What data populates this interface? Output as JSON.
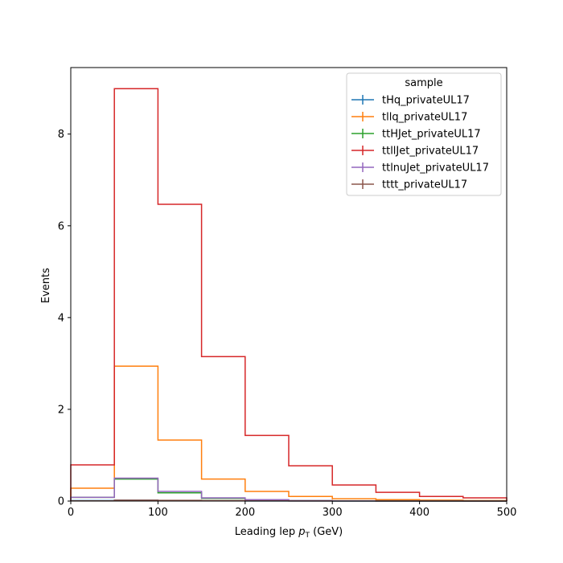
{
  "chart_data": {
    "type": "step-histogram",
    "xlabel_main": "Leading lep ",
    "xlabel_sym": "p",
    "xlabel_sub": "T",
    "xlabel_unit": " (GeV)",
    "ylabel": "Events",
    "xlim": [
      0,
      500
    ],
    "ylim": [
      0,
      9.45
    ],
    "xticks": [
      0,
      100,
      200,
      300,
      400,
      500
    ],
    "yticks": [
      0,
      2,
      4,
      6,
      8
    ],
    "bin_edges": [
      0,
      50,
      100,
      150,
      200,
      250,
      300,
      350,
      400,
      450,
      500
    ],
    "legend": {
      "title": "sample",
      "placement": "top-right"
    },
    "grid": false,
    "series": [
      {
        "name": "tHq_privateUL17",
        "color": "#1f77b4",
        "values": [
          0.01,
          0.02,
          0.01,
          0.005,
          0.003,
          0.002,
          0.001,
          0.001,
          0.0005,
          0.0003
        ]
      },
      {
        "name": "tllq_privateUL17",
        "color": "#ff7f0e",
        "values": [
          0.28,
          2.94,
          1.33,
          0.48,
          0.21,
          0.1,
          0.05,
          0.03,
          0.02,
          0.01
        ]
      },
      {
        "name": "ttHJet_privateUL17",
        "color": "#2ca02c",
        "values": [
          0.08,
          0.48,
          0.18,
          0.06,
          0.02,
          0.01,
          0.005,
          0.003,
          0.002,
          0.001
        ]
      },
      {
        "name": "ttllJet_privateUL17",
        "color": "#d62728",
        "values": [
          0.79,
          8.99,
          6.47,
          3.15,
          1.43,
          0.77,
          0.35,
          0.19,
          0.1,
          0.07
        ]
      },
      {
        "name": "ttlnuJet_privateUL17",
        "color": "#9467bd",
        "values": [
          0.08,
          0.5,
          0.21,
          0.07,
          0.03,
          0.01,
          0.005,
          0.003,
          0.002,
          0.001
        ]
      },
      {
        "name": "tttt_privateUL17",
        "color": "#8c564b",
        "values": [
          0.005,
          0.02,
          0.015,
          0.01,
          0.005,
          0.003,
          0.002,
          0.001,
          0.001,
          0.0005
        ]
      }
    ]
  }
}
